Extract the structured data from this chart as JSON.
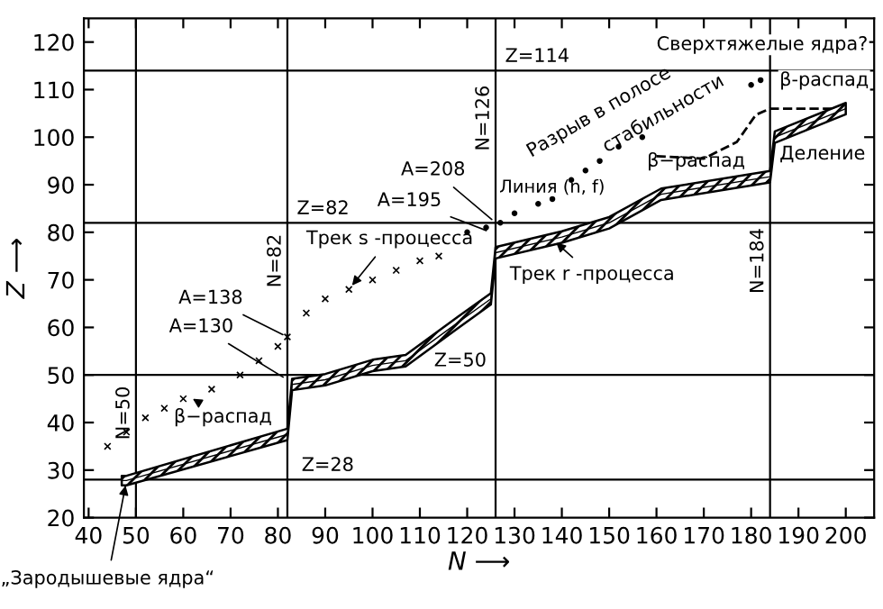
{
  "chart_data": {
    "type": "line",
    "xlabel": "N ⟶",
    "ylabel": "Z ⟶",
    "xlim": [
      39,
      206
    ],
    "ylim": [
      20,
      125
    ],
    "xticks": [
      40,
      50,
      60,
      70,
      80,
      90,
      100,
      110,
      120,
      130,
      140,
      150,
      160,
      170,
      180,
      190,
      200
    ],
    "yticks": [
      20,
      30,
      40,
      50,
      60,
      70,
      80,
      90,
      100,
      110,
      120
    ],
    "ref_lines": [
      {
        "axis": "y",
        "value": 28,
        "label": "Z=28"
      },
      {
        "axis": "x",
        "value": 50,
        "label": "N=50"
      },
      {
        "axis": "y",
        "value": 50,
        "label": "Z=50"
      },
      {
        "axis": "x",
        "value": 82,
        "label": "N=82"
      },
      {
        "axis": "y",
        "value": 82,
        "label": "Z=82"
      },
      {
        "axis": "x",
        "value": 126,
        "label": "N=126"
      },
      {
        "axis": "y",
        "value": 114,
        "label": "Z=114"
      },
      {
        "axis": "x",
        "value": 184,
        "label": "N=184"
      }
    ],
    "series": [
      {
        "color": "#000000",
        "x": [
          47,
          48,
          82,
          83,
          90,
          100,
          107,
          118,
          125,
          126,
          140,
          150,
          161,
          184,
          185,
          200
        ],
        "values": [
          27.8,
          27.8,
          37.5,
          48,
          49,
          52,
          53,
          61,
          66,
          75.7,
          79,
          82,
          88,
          91.7,
          100,
          106
        ],
        "lower": [
          26.8,
          26.8,
          36.3,
          46.8,
          47.8,
          50.8,
          51.8,
          59.8,
          64.8,
          74.5,
          77.8,
          80.8,
          86.8,
          90.5,
          98.8,
          104.8
        ],
        "upper": [
          28.8,
          28.8,
          38.7,
          49.2,
          50.2,
          53.2,
          54.2,
          62.2,
          67.2,
          76.9,
          80.2,
          83.2,
          89.2,
          92.9,
          101.2,
          107.2
        ]
      },
      {
        "color": "#000000",
        "line_style": "dashed",
        "x": [
          160,
          170,
          177,
          181,
          184,
          190,
          197
        ],
        "values": [
          96,
          95.5,
          99,
          104.7,
          106,
          106,
          106
        ]
      },
      {
        "type": "scatter",
        "color": "#000000",
        "marker": "cross",
        "x": [
          44,
          48,
          52,
          56,
          60,
          66,
          72,
          76,
          80,
          82,
          86,
          90,
          95,
          100,
          105,
          110,
          114
        ],
        "values": [
          35,
          38,
          41,
          43,
          45,
          47,
          50,
          53,
          56,
          58,
          63,
          66,
          68,
          70,
          72,
          74,
          75
        ]
      },
      {
        "type": "scatter",
        "color": "#000000",
        "marker": "circle",
        "x": [
          120,
          124,
          127,
          130,
          135,
          138,
          142,
          145,
          148,
          152,
          157,
          180,
          182
        ],
        "values": [
          80,
          81,
          82,
          84,
          86,
          87,
          91,
          93,
          95,
          98,
          100,
          111,
          112
        ]
      }
    ],
    "annotations": [
      {
        "text": "β−распад",
        "x": 62,
        "y": 45
      },
      {
        "text": "A=130",
        "x": 82,
        "y": 49
      },
      {
        "text": "A=138",
        "x": 82,
        "y": 58
      },
      {
        "text": "Трек s -процесса",
        "x": 95,
        "y": 68
      },
      {
        "text": "A=195",
        "x": 125,
        "y": 80
      },
      {
        "text": "A=208",
        "x": 126,
        "y": 82
      },
      {
        "text": "Трек r -процесса",
        "x": 138,
        "y": 78.5
      },
      "Разрыв в полосе",
      "стабильности",
      "Линия (n, f)",
      "β−распад",
      "Сверхтяжелые ядра?",
      "β-распад",
      "Деление",
      {
        "text": "„Зародышевые ядра“",
        "x": 48,
        "y": 27.8
      }
    ]
  }
}
